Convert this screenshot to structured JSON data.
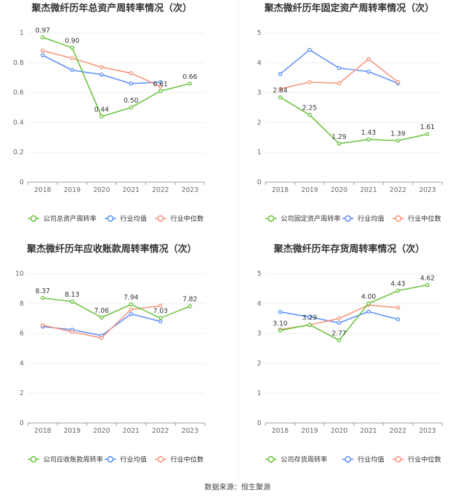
{
  "source_text": "数据来源：恒生聚源",
  "colors": {
    "company": "#67c23a",
    "avg": "#5b8ff9",
    "median": "#f6937a",
    "grid": "#eeeeee",
    "axis": "#999999"
  },
  "chart_data": [
    {
      "type": "line",
      "title": "聚杰微纤历年总资产周转率情况（次）",
      "categories": [
        "2018",
        "2019",
        "2020",
        "2021",
        "2022",
        "2023"
      ],
      "ylim": [
        0,
        1
      ],
      "yticks": [
        "0",
        "0.2",
        "0.4",
        "0.6",
        "0.8",
        "1"
      ],
      "grid": true,
      "legend_position": "bottom",
      "series": [
        {
          "name": "公司总资产周转率",
          "key": "company",
          "values": [
            0.97,
            0.9,
            0.44,
            0.5,
            0.61,
            0.66
          ],
          "labels": [
            "0.97",
            "0.90",
            "0.44",
            "0.50",
            "0.61",
            "0.66"
          ]
        },
        {
          "name": "行业均值",
          "key": "avg",
          "values": [
            0.85,
            0.75,
            0.72,
            0.66,
            0.67,
            null
          ]
        },
        {
          "name": "行业中位数",
          "key": "median",
          "values": [
            0.88,
            0.83,
            0.77,
            0.73,
            0.64,
            null
          ]
        }
      ]
    },
    {
      "type": "line",
      "title": "聚杰微纤历年固定资产周转率情况（次）",
      "categories": [
        "2018",
        "2019",
        "2020",
        "2021",
        "2022",
        "2023"
      ],
      "ylim": [
        0,
        5
      ],
      "yticks": [
        "0",
        "1",
        "2",
        "3",
        "4",
        "5"
      ],
      "grid": true,
      "legend_position": "bottom",
      "series": [
        {
          "name": "公司固定资产周转率",
          "key": "company",
          "values": [
            2.84,
            2.25,
            1.29,
            1.43,
            1.39,
            1.61
          ],
          "labels": [
            "2.84",
            "2.25",
            "1.29",
            "1.43",
            "1.39",
            "1.61"
          ]
        },
        {
          "name": "行业均值",
          "key": "avg",
          "values": [
            3.62,
            4.43,
            3.82,
            3.7,
            3.31,
            null
          ]
        },
        {
          "name": "行业中位数",
          "key": "median",
          "values": [
            3.12,
            3.35,
            3.31,
            4.12,
            3.35,
            null
          ]
        }
      ]
    },
    {
      "type": "line",
      "title": "聚杰微纤历年应收账款周转率情况（次）",
      "categories": [
        "2018",
        "2019",
        "2020",
        "2021",
        "2022",
        "2023"
      ],
      "ylim": [
        0,
        10
      ],
      "yticks": [
        "0",
        "2",
        "4",
        "6",
        "8",
        "10"
      ],
      "grid": true,
      "legend_position": "bottom",
      "series": [
        {
          "name": "公司应收账款周转率",
          "key": "company",
          "values": [
            8.37,
            8.13,
            7.06,
            7.94,
            7.03,
            7.82
          ],
          "labels": [
            "8.37",
            "8.13",
            "7.06",
            "7.94",
            "7.03",
            "7.82"
          ]
        },
        {
          "name": "行业均值",
          "key": "avg",
          "values": [
            6.45,
            6.25,
            5.85,
            7.3,
            6.8,
            null
          ]
        },
        {
          "name": "行业中位数",
          "key": "median",
          "values": [
            6.55,
            6.1,
            5.7,
            7.6,
            7.85,
            null
          ]
        }
      ]
    },
    {
      "type": "line",
      "title": "聚杰微纤历年存货周转率情况（次）",
      "categories": [
        "2018",
        "2019",
        "2020",
        "2021",
        "2022",
        "2023"
      ],
      "ylim": [
        0,
        5
      ],
      "yticks": [
        "0",
        "1",
        "2",
        "3",
        "4",
        "5"
      ],
      "grid": true,
      "legend_position": "bottom",
      "series": [
        {
          "name": "公司存货周转率",
          "key": "company",
          "values": [
            3.1,
            3.29,
            2.77,
            4.0,
            4.43,
            4.62
          ],
          "labels": [
            "3.10",
            "3.29",
            "2.77",
            "4.00",
            "4.43",
            "4.62"
          ]
        },
        {
          "name": "行业均值",
          "key": "avg",
          "values": [
            3.72,
            3.55,
            3.35,
            3.73,
            3.47,
            null
          ]
        },
        {
          "name": "行业中位数",
          "key": "median",
          "values": [
            3.13,
            3.28,
            3.5,
            3.95,
            3.86,
            null
          ]
        }
      ]
    }
  ]
}
